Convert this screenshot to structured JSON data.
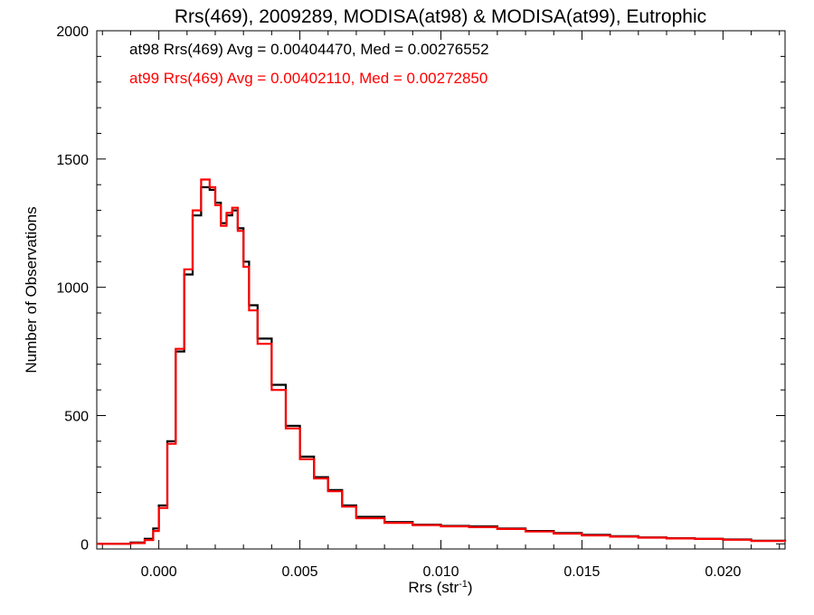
{
  "chart_data": {
    "type": "line",
    "title": "Rrs(469), 2009289, MODISA(at98) & MODISA(at99), Eutrophic",
    "xlabel": "Rrs (str",
    "xlabel_sup": "-1",
    "xlabel_close": ")",
    "ylabel": "Number of Observations",
    "xlim": [
      -0.0022,
      0.0222
    ],
    "ylim": [
      -20,
      2000
    ],
    "xticks": [
      {
        "value": 0.0,
        "label": "0.000"
      },
      {
        "value": 0.005,
        "label": "0.005"
      },
      {
        "value": 0.01,
        "label": "0.010"
      },
      {
        "value": 0.015,
        "label": "0.015"
      },
      {
        "value": 0.02,
        "label": "0.020"
      }
    ],
    "yticks": [
      {
        "value": 0,
        "label": "0"
      },
      {
        "value": 500,
        "label": "500"
      },
      {
        "value": 1000,
        "label": "1000"
      },
      {
        "value": 1500,
        "label": "1500"
      },
      {
        "value": 2000,
        "label": "2000"
      }
    ],
    "grid": false,
    "legend_position": "top-left",
    "series": [
      {
        "name": "at98",
        "color": "#000000",
        "annotation": "at98 Rrs(469) Avg = 0.00404470, Med = 0.00276552",
        "x": [
          -0.0022,
          -0.001,
          -0.0005,
          -0.0002,
          0.0,
          0.0003,
          0.0006,
          0.0009,
          0.0012,
          0.0015,
          0.0018,
          0.002,
          0.0022,
          0.0024,
          0.0026,
          0.0028,
          0.003,
          0.0032,
          0.0035,
          0.004,
          0.0045,
          0.005,
          0.0055,
          0.006,
          0.0065,
          0.007,
          0.008,
          0.009,
          0.01,
          0.011,
          0.012,
          0.013,
          0.014,
          0.015,
          0.016,
          0.017,
          0.018,
          0.019,
          0.02,
          0.021,
          0.0222
        ],
        "y": [
          0,
          5,
          20,
          60,
          150,
          400,
          750,
          1050,
          1280,
          1390,
          1380,
          1330,
          1250,
          1280,
          1300,
          1230,
          1100,
          930,
          800,
          620,
          460,
          340,
          260,
          210,
          150,
          105,
          85,
          75,
          70,
          68,
          60,
          50,
          42,
          35,
          30,
          25,
          22,
          20,
          17,
          12,
          10
        ]
      },
      {
        "name": "at99",
        "color": "#ff0000",
        "annotation": "at99 Rrs(469) Avg = 0.00402110, Med = 0.00272850",
        "x": [
          -0.0022,
          -0.001,
          -0.0005,
          -0.0002,
          0.0,
          0.0003,
          0.0006,
          0.0009,
          0.0012,
          0.0015,
          0.0018,
          0.002,
          0.0022,
          0.0024,
          0.0026,
          0.0028,
          0.003,
          0.0032,
          0.0035,
          0.004,
          0.0045,
          0.005,
          0.0055,
          0.006,
          0.0065,
          0.007,
          0.008,
          0.009,
          0.01,
          0.011,
          0.012,
          0.013,
          0.014,
          0.015,
          0.016,
          0.017,
          0.018,
          0.019,
          0.02,
          0.021,
          0.0222
        ],
        "y": [
          0,
          3,
          15,
          50,
          140,
          390,
          760,
          1070,
          1300,
          1420,
          1390,
          1320,
          1240,
          1290,
          1310,
          1220,
          1080,
          910,
          780,
          600,
          450,
          330,
          255,
          205,
          145,
          100,
          82,
          73,
          68,
          65,
          58,
          48,
          40,
          33,
          28,
          24,
          21,
          19,
          16,
          11,
          9
        ]
      }
    ]
  }
}
